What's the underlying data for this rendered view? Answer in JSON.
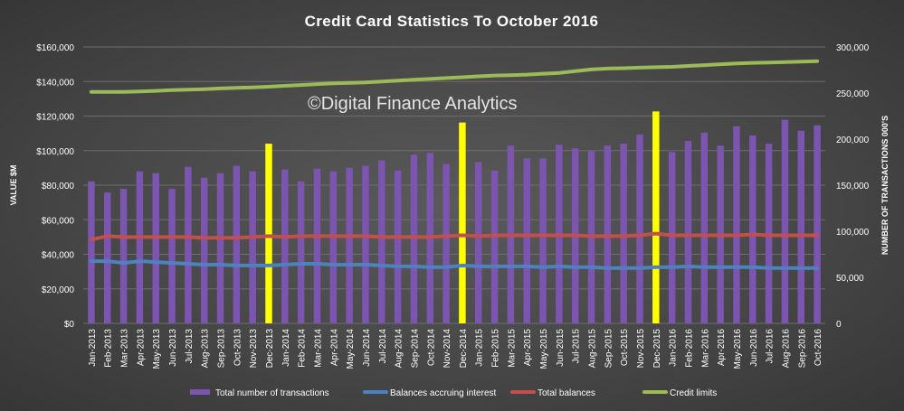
{
  "chart_data": {
    "type": "bar",
    "title": "Credit Card Statistics To October 2016",
    "watermark": "©Digital Finance Analytics",
    "ylabel": "VALUE $M",
    "y2label": "NUMBER OF TRANSACTIONS 000'S",
    "ylim": [
      0,
      160000
    ],
    "y2lim": [
      0,
      300000
    ],
    "yticks": [
      "$0",
      "$20,000",
      "$40,000",
      "$60,000",
      "$80,000",
      "$100,000",
      "$120,000",
      "$140,000",
      "$160,000"
    ],
    "y2ticks": [
      "0",
      "50,000",
      "100,000",
      "150,000",
      "200,000",
      "250,000",
      "300,000"
    ],
    "grid": true,
    "legend_position": "bottom",
    "categories": [
      "Jan-2013",
      "Feb-2013",
      "Mar-2013",
      "Apr-2013",
      "May-2013",
      "Jun-2013",
      "Jul-2013",
      "Aug-2013",
      "Sep-2013",
      "Oct-2013",
      "Nov-2013",
      "Dec-2013",
      "Jan-2014",
      "Feb-2014",
      "Mar-2014",
      "Apr-2014",
      "May-2014",
      "Jun-2014",
      "Jul-2014",
      "Aug-2014",
      "Sep-2014",
      "Oct-2014",
      "Nov-2014",
      "Dec-2014",
      "Jan-2015",
      "Feb-2015",
      "Mar-2015",
      "Apr-2015",
      "May-2015",
      "Jun-2015",
      "Jul-2015",
      "Aug-2015",
      "Sep-2015",
      "Oct-2015",
      "Nov-2015",
      "Dec-2015",
      "Jan-2016",
      "Feb-2016",
      "Mar-2016",
      "Apr-2016",
      "May-2016",
      "Jun-2016",
      "Jul-2016",
      "Aug-2016",
      "Sep-2016",
      "Oct-2016"
    ],
    "highlighted_categories": [
      "Dec-2013",
      "Dec-2014",
      "Dec-2015"
    ],
    "series": [
      {
        "name": "Total number of transactions",
        "type": "bar",
        "axis": "right",
        "color": "#7b55b0",
        "highlight_color": "#ffff00",
        "values": [
          154000,
          142000,
          146000,
          165000,
          163000,
          146000,
          170000,
          158000,
          163000,
          171000,
          165000,
          195000,
          167000,
          154000,
          168000,
          165000,
          169000,
          171000,
          177000,
          166000,
          183000,
          185000,
          173000,
          218000,
          175000,
          166000,
          193000,
          179000,
          179000,
          194000,
          190000,
          187000,
          193000,
          195000,
          205000,
          230000,
          186000,
          198000,
          207000,
          193000,
          214000,
          204000,
          195000,
          221000,
          209000,
          215000
        ]
      },
      {
        "name": "Balances accruing interest",
        "type": "line",
        "axis": "left",
        "color": "#4f81bd",
        "values": [
          36000,
          36000,
          35000,
          36000,
          35500,
          35000,
          34500,
          34000,
          34000,
          33500,
          33500,
          33500,
          34000,
          34500,
          34500,
          34000,
          34000,
          34000,
          33500,
          33000,
          33000,
          32500,
          32500,
          33500,
          33000,
          33000,
          33000,
          33000,
          32500,
          33000,
          32500,
          32500,
          32000,
          32000,
          32000,
          32500,
          32500,
          33000,
          32500,
          32500,
          32500,
          32500,
          32000,
          32000,
          32000,
          32000
        ]
      },
      {
        "name": "Total balances",
        "type": "line",
        "axis": "left",
        "color": "#c0504d",
        "values": [
          48500,
          50500,
          50000,
          50000,
          50000,
          50000,
          50000,
          49500,
          49500,
          49500,
          50000,
          50500,
          50000,
          50500,
          50500,
          50500,
          50500,
          50500,
          50000,
          50000,
          50000,
          50000,
          50500,
          51000,
          50500,
          51000,
          51000,
          51000,
          51000,
          51000,
          51000,
          50500,
          50500,
          50500,
          51000,
          52000,
          51000,
          51000,
          51000,
          51000,
          51000,
          51500,
          51000,
          51000,
          51000,
          51000
        ]
      },
      {
        "name": "Credit limits",
        "type": "line",
        "axis": "left",
        "color": "#9bbb59",
        "values": [
          134000,
          134000,
          134000,
          134300,
          134600,
          135000,
          135300,
          135600,
          136000,
          136300,
          136600,
          137000,
          137500,
          138000,
          138500,
          139000,
          139200,
          139500,
          140000,
          140500,
          141000,
          141500,
          142000,
          142500,
          143000,
          143500,
          143700,
          144000,
          144500,
          145000,
          146000,
          147000,
          147500,
          147700,
          148000,
          148300,
          148500,
          149000,
          149500,
          150000,
          150500,
          150800,
          151000,
          151200,
          151500,
          151800
        ]
      }
    ]
  }
}
